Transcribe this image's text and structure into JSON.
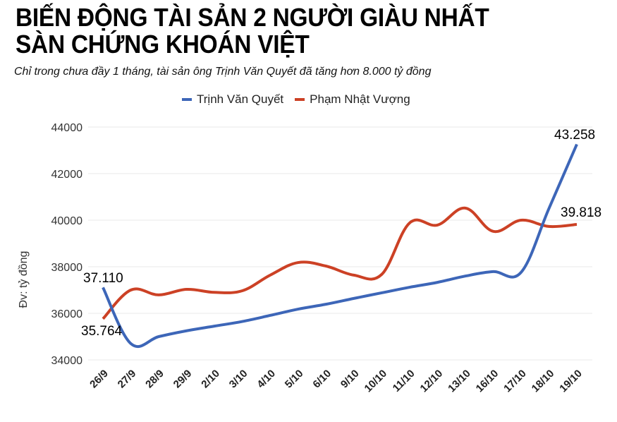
{
  "header": {
    "title_line1": "BIẾN ĐỘNG TÀI SẢN 2 NGƯỜI GIÀU NHẤT",
    "title_line2": "SÀN CHỨNG KHOÁN VIỆT",
    "subtitle": "Chỉ trong chưa đầy 1 tháng, tài sản ông Trịnh Văn Quyết đã tăng hơn 8.000 tỷ đồng"
  },
  "legend": [
    {
      "label": "Trịnh Văn Quyết",
      "color": "#3d66b8"
    },
    {
      "label": "Phạm Nhật Vượng",
      "color": "#cc4125"
    }
  ],
  "chart_data": {
    "type": "line",
    "title": "BIẾN ĐỘNG TÀI SẢN 2 NGƯỜI GIÀU NHẤT SÀN CHỨNG KHOÁN VIỆT",
    "subtitle": "Chỉ trong chưa đầy 1 tháng, tài sản ông Trịnh Văn Quyết đã tăng hơn 8.000 tỷ đồng",
    "xlabel": "",
    "ylabel": "Đv: tỷ đồng",
    "ylim": [
      34000,
      44000
    ],
    "yticks": [
      34000,
      36000,
      38000,
      40000,
      42000,
      44000
    ],
    "grid": true,
    "legend_position": "top",
    "categories": [
      "26/9",
      "27/9",
      "28/9",
      "29/9",
      "2/10",
      "3/10",
      "4/10",
      "5/10",
      "6/10",
      "9/10",
      "10/10",
      "11/10",
      "12/10",
      "13/10",
      "16/10",
      "17/10",
      "18/10",
      "19/10"
    ],
    "series": [
      {
        "name": "Trịnh Văn Quyết",
        "color": "#3d66b8",
        "values": [
          37110,
          34700,
          35000,
          35250,
          35450,
          35650,
          35910,
          36180,
          36390,
          36640,
          36880,
          37120,
          37330,
          37600,
          37790,
          37760,
          40500,
          43258
        ]
      },
      {
        "name": "Phạm Nhật Vượng",
        "color": "#cc4125",
        "values": [
          35764,
          37000,
          36790,
          37030,
          36900,
          36970,
          37640,
          38180,
          38030,
          37640,
          37670,
          39880,
          39790,
          40520,
          39520,
          40000,
          39730,
          39818
        ]
      }
    ],
    "annotations": [
      {
        "series": "Trịnh Văn Quyết",
        "x": "26/9",
        "label": "37.110"
      },
      {
        "series": "Phạm Nhật Vượng",
        "x": "26/9",
        "label": "35.764"
      },
      {
        "series": "Trịnh Văn Quyết",
        "x": "19/10",
        "label": "43.258"
      },
      {
        "series": "Phạm Nhật Vượng",
        "x": "19/10",
        "label": "39.818"
      }
    ]
  }
}
